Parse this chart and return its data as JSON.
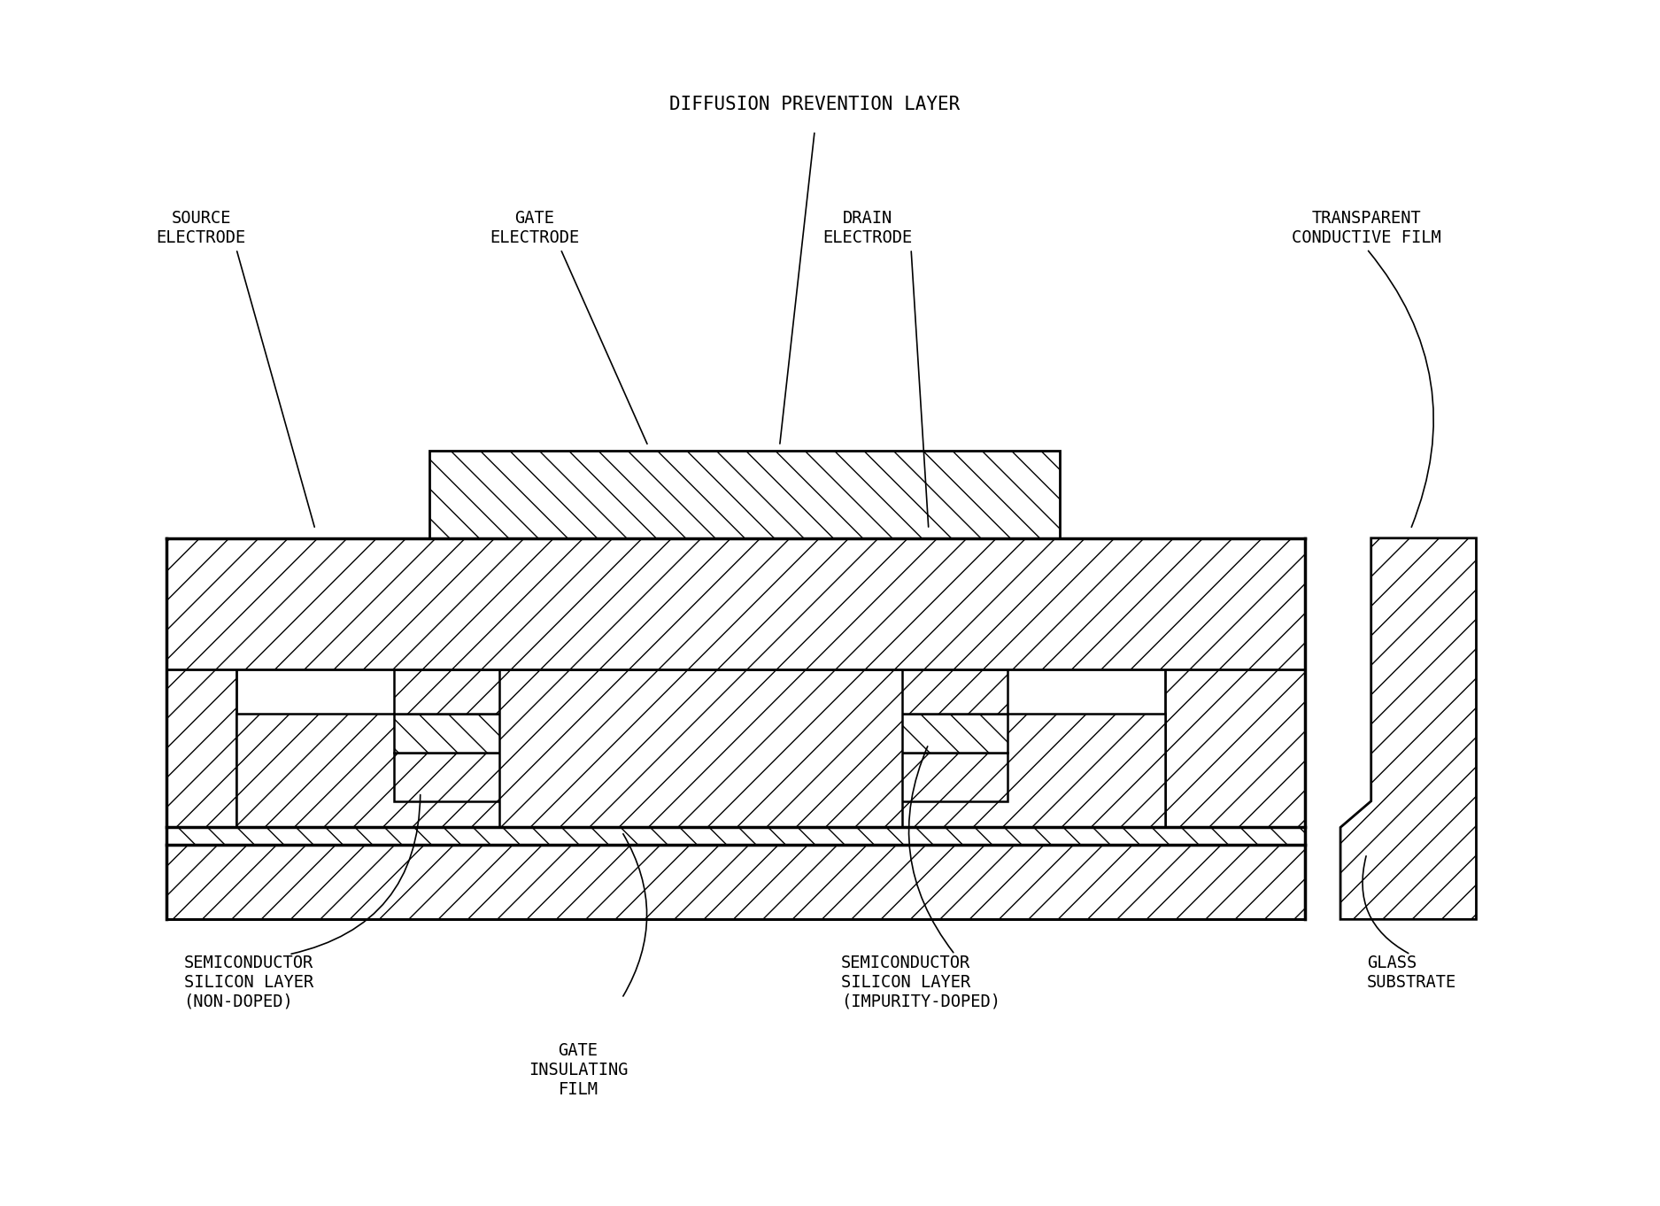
{
  "bg_color": "#ffffff",
  "fig_width": 18.75,
  "fig_height": 13.62,
  "dpi": 100,
  "labels": {
    "diffusion_prevention": "DIFFUSION PREVENTION LAYER",
    "source_electrode": "SOURCE\nELECTRODE",
    "gate_electrode": "GATE\nELECTRODE",
    "drain_electrode": "DRAIN\nELECTRODE",
    "transparent_film": "TRANSPARENT\nCONDUCTIVE FILM",
    "semiconductor_nondoped": "SEMICONDUCTOR\nSILICON LAYER\n(NON-DOPED)",
    "semiconductor_doped": "SEMICONDUCTOR\nSILICON LAYER\n(IMPURITY-DOPED)",
    "gate_insulating": "GATE\nINSULATING\nFILM",
    "glass_substrate": "GLASS\nSUBSTRATE"
  },
  "font_size": 13.5,
  "label_font": "DejaVu Sans"
}
